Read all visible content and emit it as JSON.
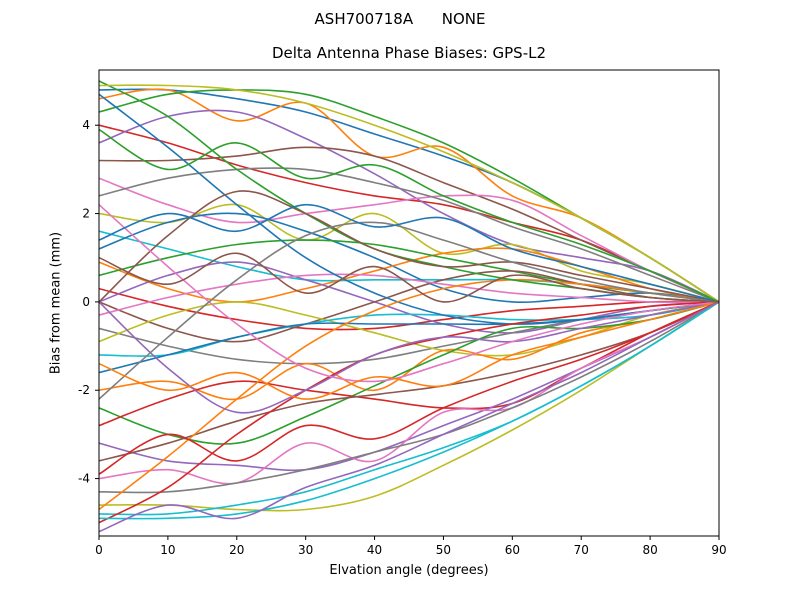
{
  "chart_data": {
    "type": "line",
    "suptitle": "ASH700718A      NONE",
    "title": "Delta Antenna Phase Biases: GPS-L2",
    "xlabel": "Elvation angle (degrees)",
    "ylabel": "Bias from mean (mm)",
    "x": [
      0,
      10,
      20,
      30,
      40,
      50,
      60,
      70,
      80,
      90
    ],
    "xlim": [
      0,
      90
    ],
    "ylim": [
      -5.3,
      5.25
    ],
    "xticks": [
      0,
      10,
      20,
      30,
      40,
      50,
      60,
      70,
      80,
      90
    ],
    "yticks": [
      -4,
      -2,
      0,
      2,
      4
    ],
    "grid": false,
    "legend": "none",
    "palette": [
      "#1f77b4",
      "#ff7f0e",
      "#2ca02c",
      "#d62728",
      "#9467bd",
      "#8c564b",
      "#e377c2",
      "#7f7f7f",
      "#bcbd22",
      "#17becf"
    ],
    "series": [
      {
        "y": [
          4.8,
          4.8,
          4.6,
          4.3,
          3.8,
          3.3,
          2.7,
          1.9,
          1.0,
          0.0
        ]
      },
      {
        "y": [
          4.6,
          4.8,
          4.1,
          4.5,
          3.3,
          3.5,
          2.4,
          1.9,
          1.0,
          0.0
        ]
      },
      {
        "y": [
          4.3,
          4.7,
          4.8,
          4.7,
          4.2,
          3.6,
          2.8,
          1.9,
          1.0,
          0.0
        ]
      },
      {
        "y": [
          4.0,
          3.6,
          3.1,
          2.7,
          2.4,
          2.2,
          1.8,
          1.4,
          0.7,
          0.0
        ]
      },
      {
        "y": [
          3.6,
          4.2,
          4.3,
          3.7,
          2.9,
          2.0,
          1.3,
          1.0,
          0.7,
          0.0
        ]
      },
      {
        "y": [
          3.2,
          3.2,
          3.3,
          3.5,
          3.3,
          2.7,
          2.1,
          1.4,
          0.7,
          0.0
        ]
      },
      {
        "y": [
          2.8,
          2.2,
          1.8,
          2.0,
          2.2,
          2.4,
          2.3,
          1.5,
          0.7,
          0.0
        ]
      },
      {
        "y": [
          2.4,
          2.8,
          3.0,
          3.0,
          2.7,
          2.3,
          1.7,
          1.2,
          0.6,
          0.0
        ]
      },
      {
        "y": [
          2.0,
          1.8,
          2.2,
          1.4,
          2.0,
          1.1,
          1.3,
          0.7,
          0.4,
          0.0
        ]
      },
      {
        "y": [
          1.6,
          1.2,
          0.8,
          0.5,
          0.5,
          0.5,
          0.5,
          0.4,
          0.2,
          0.0
        ]
      },
      {
        "y": [
          1.2,
          1.8,
          2.0,
          1.6,
          1.0,
          0.3,
          0.0,
          0.1,
          0.2,
          0.0
        ]
      },
      {
        "y": [
          0.9,
          0.3,
          0.0,
          0.3,
          0.7,
          1.1,
          1.2,
          0.8,
          0.3,
          0.0
        ]
      },
      {
        "y": [
          0.6,
          1.0,
          1.3,
          1.4,
          1.3,
          1.0,
          0.7,
          0.4,
          0.2,
          0.0
        ]
      },
      {
        "y": [
          0.3,
          -0.1,
          -0.4,
          -0.6,
          -0.6,
          -0.4,
          -0.2,
          -0.1,
          0.0,
          0.0
        ]
      },
      {
        "y": [
          0.0,
          0.6,
          0.9,
          0.5,
          0.0,
          -0.5,
          -0.7,
          -0.4,
          -0.1,
          0.0
        ]
      },
      {
        "y": [
          0.0,
          -0.6,
          -0.9,
          -0.5,
          0.0,
          0.5,
          0.7,
          0.4,
          0.1,
          0.0
        ]
      },
      {
        "y": [
          -0.3,
          0.1,
          0.4,
          0.6,
          0.6,
          0.4,
          0.2,
          0.1,
          0.0,
          0.0
        ]
      },
      {
        "y": [
          -0.6,
          -1.0,
          -1.3,
          -1.4,
          -1.3,
          -1.0,
          -0.7,
          -0.4,
          -0.2,
          0.0
        ]
      },
      {
        "y": [
          -0.9,
          -0.3,
          0.0,
          -0.3,
          -0.7,
          -1.1,
          -1.2,
          -0.8,
          -0.3,
          0.0
        ]
      },
      {
        "y": [
          -1.2,
          -1.2,
          -0.8,
          -0.5,
          -0.3,
          -0.3,
          -0.4,
          -0.4,
          -0.3,
          0.0
        ]
      },
      {
        "y": [
          -1.6,
          -1.2,
          -0.8,
          -0.5,
          -0.5,
          -0.5,
          -0.5,
          -0.4,
          -0.2,
          0.0
        ]
      },
      {
        "y": [
          -2.0,
          -1.8,
          -2.2,
          -1.4,
          -2.0,
          -1.1,
          -1.3,
          -0.7,
          -0.4,
          0.0
        ]
      },
      {
        "y": [
          -2.4,
          -3.0,
          -3.2,
          -2.6,
          -1.9,
          -1.2,
          -0.6,
          -0.6,
          -0.4,
          0.0
        ]
      },
      {
        "y": [
          -2.8,
          -2.2,
          -1.8,
          -2.0,
          -2.2,
          -2.4,
          -2.3,
          -1.5,
          -0.7,
          0.0
        ]
      },
      {
        "y": [
          -3.2,
          -3.6,
          -3.7,
          -3.8,
          -3.4,
          -2.8,
          -2.2,
          -1.5,
          -0.8,
          0.0
        ]
      },
      {
        "y": [
          -3.6,
          -3.2,
          -2.7,
          -2.3,
          -2.1,
          -1.9,
          -1.6,
          -1.2,
          -0.7,
          0.0
        ]
      },
      {
        "y": [
          -4.0,
          -3.8,
          -4.1,
          -3.2,
          -3.6,
          -2.5,
          -2.4,
          -1.5,
          -0.8,
          0.0
        ]
      },
      {
        "y": [
          -4.3,
          -4.3,
          -4.1,
          -3.8,
          -3.4,
          -3.0,
          -2.4,
          -1.7,
          -0.9,
          0.0
        ]
      },
      {
        "y": [
          -4.6,
          -4.6,
          -4.7,
          -4.7,
          -4.4,
          -3.7,
          -2.9,
          -2.0,
          -1.0,
          0.0
        ]
      },
      {
        "y": [
          -4.8,
          -4.8,
          -4.6,
          -4.3,
          -3.8,
          -3.3,
          -2.7,
          -1.9,
          -1.0,
          0.0
        ]
      },
      {
        "y": [
          4.7,
          3.5,
          2.2,
          1.0,
          0.2,
          -0.3,
          -0.5,
          -0.4,
          -0.2,
          0.0
        ]
      },
      {
        "y": [
          -4.7,
          -3.5,
          -2.2,
          -1.0,
          -0.2,
          0.3,
          0.5,
          0.4,
          0.2,
          0.0
        ]
      },
      {
        "y": [
          5.0,
          4.2,
          3.0,
          2.0,
          1.2,
          0.8,
          0.5,
          0.3,
          0.1,
          0.0
        ]
      },
      {
        "y": [
          -5.0,
          -4.2,
          -3.0,
          -2.0,
          -1.2,
          -0.8,
          -0.5,
          -0.3,
          -0.1,
          0.0
        ]
      },
      {
        "y": [
          0.0,
          -1.5,
          -2.5,
          -2.0,
          -1.2,
          -0.8,
          -0.9,
          -0.6,
          -0.3,
          0.0
        ]
      },
      {
        "y": [
          0.0,
          1.5,
          2.5,
          2.0,
          1.2,
          0.8,
          0.9,
          0.6,
          0.3,
          0.0
        ]
      },
      {
        "y": [
          2.2,
          0.8,
          -0.5,
          -1.5,
          -1.8,
          -1.4,
          -0.9,
          -0.5,
          -0.2,
          0.0
        ]
      },
      {
        "y": [
          -2.2,
          -0.8,
          0.5,
          1.5,
          1.8,
          1.4,
          0.9,
          0.5,
          0.2,
          0.0
        ]
      },
      {
        "y": [
          4.9,
          4.9,
          4.8,
          4.5,
          4.0,
          3.4,
          2.7,
          1.9,
          1.0,
          0.0
        ]
      },
      {
        "y": [
          -4.9,
          -4.9,
          -4.8,
          -4.5,
          -4.0,
          -3.4,
          -2.7,
          -1.9,
          -1.0,
          0.0
        ]
      },
      {
        "y": [
          1.4,
          2.0,
          1.6,
          2.2,
          1.7,
          1.9,
          1.2,
          0.8,
          0.4,
          0.0
        ]
      },
      {
        "y": [
          -1.4,
          -2.0,
          -1.6,
          -2.2,
          -1.7,
          -1.9,
          -1.2,
          -0.8,
          -0.4,
          0.0
        ]
      },
      {
        "y": [
          3.9,
          3.0,
          3.6,
          2.8,
          3.1,
          2.4,
          1.8,
          1.3,
          0.7,
          0.0
        ]
      },
      {
        "y": [
          -3.9,
          -3.0,
          -3.6,
          -2.8,
          -3.1,
          -2.4,
          -1.8,
          -1.3,
          -0.7,
          0.0
        ]
      },
      {
        "y": [
          -5.2,
          -4.6,
          -4.9,
          -4.2,
          -3.7,
          -3.0,
          -2.3,
          -1.6,
          -0.8,
          0.0
        ]
      },
      {
        "y": [
          1.0,
          0.4,
          1.1,
          0.2,
          0.8,
          0.0,
          0.6,
          0.3,
          0.1,
          0.0
        ]
      }
    ]
  }
}
